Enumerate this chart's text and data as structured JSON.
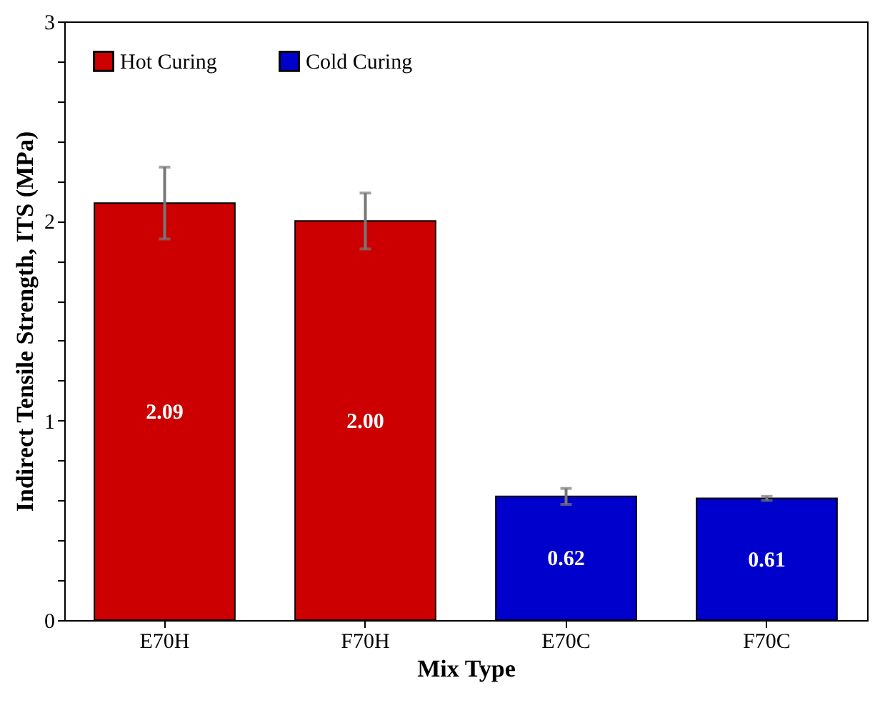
{
  "chart_data": {
    "type": "bar",
    "xlabel": "Mix Type",
    "ylabel": "Indirect Tensile Strength, ITS (MPa)",
    "categories": [
      "E70H",
      "F70H",
      "E70C",
      "F70C"
    ],
    "series": [
      {
        "name": "Hot Curing",
        "color": "#cc0000",
        "values": [
          2.09,
          2.0,
          null,
          null
        ],
        "errors": [
          0.18,
          0.14,
          null,
          null
        ],
        "value_labels": [
          "2.09",
          "2.00",
          null,
          null
        ]
      },
      {
        "name": "Cold Curing",
        "color": "#0000cc",
        "values": [
          null,
          null,
          0.62,
          0.61
        ],
        "errors": [
          null,
          null,
          0.04,
          0.01
        ],
        "value_labels": [
          null,
          null,
          "0.62",
          "0.61"
        ]
      }
    ],
    "ylim": [
      0,
      3
    ],
    "data_labels": true,
    "yticks": [
      0,
      {
        "value": 0.2,
        "label": null
      },
      {
        "value": 0.4,
        "label": null
      },
      {
        "value": 0.6,
        "label": null
      },
      {
        "value": 0.8,
        "label": null
      },
      1,
      {
        "value": 1.2,
        "label": null
      },
      {
        "value": 1.4,
        "label": null
      },
      {
        "value": 1.6,
        "label": null
      },
      {
        "value": 1.8,
        "label": null
      },
      2,
      {
        "value": 2.2,
        "label": null
      },
      {
        "value": 2.4,
        "label": null
      },
      {
        "value": 2.6,
        "label": null
      },
      {
        "value": 2.8,
        "label": null
      },
      3
    ],
    "grid": false,
    "legend": "top left"
  }
}
